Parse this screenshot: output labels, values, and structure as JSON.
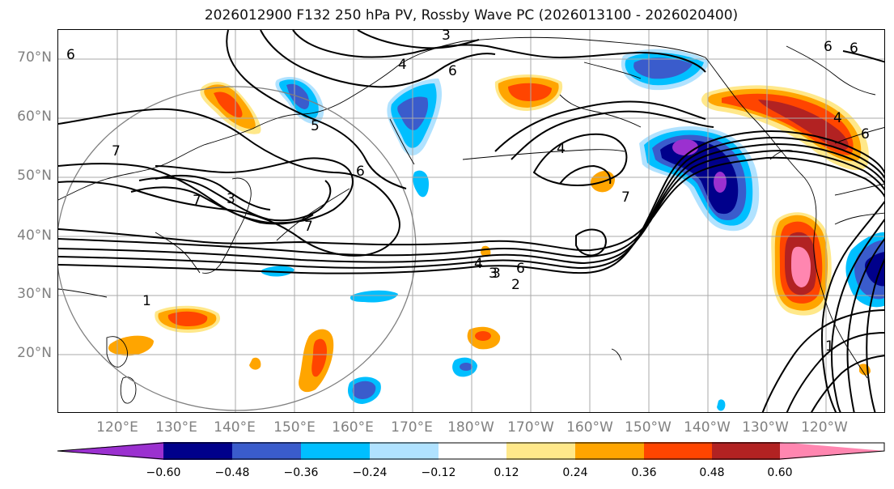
{
  "title": "2026012900 F132 250 hPa PV, Rossby Wave PC (2026013100 - 2026020400)",
  "lat_labels": [
    "70°N",
    "60°N",
    "50°N",
    "40°N",
    "30°N",
    "20°N"
  ],
  "lon_labels": [
    "120°E",
    "130°E",
    "140°E",
    "150°E",
    "160°E",
    "170°E",
    "180°W",
    "170°W",
    "160°W",
    "150°W",
    "140°W",
    "130°W",
    "120°W"
  ],
  "contour_labels": [
    "3",
    "4",
    "6",
    "6",
    "6",
    "4",
    "5",
    "6",
    "3",
    "6",
    "4",
    "7",
    "7",
    "7",
    "3",
    "6",
    "7",
    "4",
    "3",
    "2",
    "1",
    "1",
    "6"
  ],
  "colorbar": {
    "tick_labels": [
      "−0.60",
      "−0.48",
      "−0.36",
      "−0.24",
      "−0.12",
      "0.12",
      "0.24",
      "0.36",
      "0.48",
      "0.60"
    ],
    "colors": {
      "lt_neg060": "#9b30d0",
      "neg060_neg048": "#00008b",
      "neg048_neg036": "#3a5ccc",
      "neg036_neg024": "#00bfff",
      "neg024_neg012": "#b0e2ff",
      "neg012_012": "#ffffff",
      "p012_024": "#ffe88a",
      "p024_036": "#ffa500",
      "p036_048": "#ff4500",
      "p048_060": "#b22222",
      "gt_060": "#ff86b0"
    }
  },
  "colors": {
    "label_gray": "#808080",
    "grid": "#aaaaaa",
    "contour": "#000000"
  }
}
